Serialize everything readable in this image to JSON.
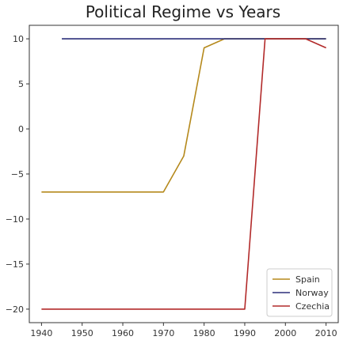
{
  "chart_data": {
    "type": "line",
    "title": "Political Regime vs Years",
    "xlabel": "",
    "ylabel": "",
    "xlim": [
      1937,
      2013
    ],
    "ylim": [
      -21.5,
      11.5
    ],
    "xticks": [
      1940,
      1950,
      1960,
      1970,
      1980,
      1990,
      2000,
      2010
    ],
    "yticks": [
      10,
      5,
      0,
      -5,
      -10,
      -15,
      -20
    ],
    "ytick_labels": [
      "10",
      "5",
      "0",
      "−5",
      "−10",
      "−15",
      "−20"
    ],
    "grid": false,
    "legend_position": "bottom-right",
    "series": [
      {
        "name": "Spain",
        "color": "#b5891c",
        "x": [
          1940,
          1945,
          1950,
          1955,
          1960,
          1965,
          1970,
          1975,
          1980,
          1985,
          1990,
          1995,
          2000,
          2005,
          2010
        ],
        "y": [
          -7,
          -7,
          -7,
          -7,
          -7,
          -7,
          -7,
          -3,
          9,
          10,
          10,
          10,
          10,
          10,
          10
        ]
      },
      {
        "name": "Norway",
        "color": "#2b2f7a",
        "x": [
          1945,
          1950,
          1955,
          1960,
          1965,
          1970,
          1975,
          1980,
          1985,
          1990,
          1995,
          2000,
          2005,
          2010
        ],
        "y": [
          10,
          10,
          10,
          10,
          10,
          10,
          10,
          10,
          10,
          10,
          10,
          10,
          10,
          10
        ]
      },
      {
        "name": "Czechia",
        "color": "#b22a2a",
        "x": [
          1940,
          1945,
          1950,
          1955,
          1960,
          1965,
          1970,
          1975,
          1980,
          1985,
          1990,
          1995,
          2000,
          2005,
          2010
        ],
        "y": [
          -20,
          -20,
          -20,
          -20,
          -20,
          -20,
          -20,
          -20,
          -20,
          -20,
          -20,
          10,
          10,
          10,
          9
        ]
      }
    ]
  }
}
